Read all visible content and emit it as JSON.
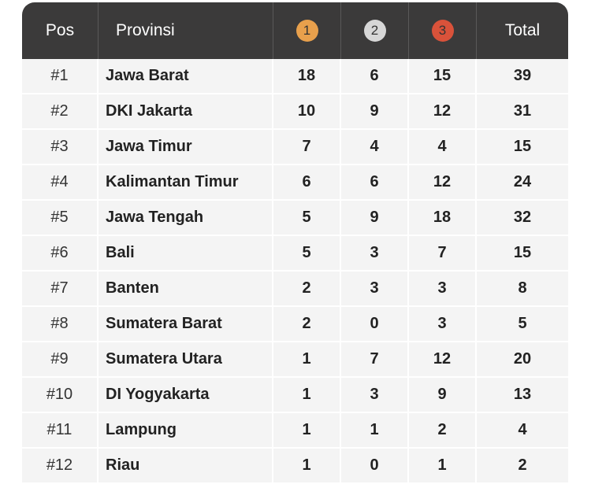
{
  "header": {
    "pos": "Pos",
    "province": "Provinsi",
    "gold": {
      "label": "1",
      "color": "#e8a04c"
    },
    "silver": {
      "label": "2",
      "color": "#d7d7d7"
    },
    "bronze": {
      "label": "3",
      "color": "#d9523a"
    },
    "total": "Total"
  },
  "rows": [
    {
      "pos": "#1",
      "province": "Jawa Barat",
      "gold": "18",
      "silver": "6",
      "bronze": "15",
      "total": "39"
    },
    {
      "pos": "#2",
      "province": "DKI Jakarta",
      "gold": "10",
      "silver": "9",
      "bronze": "12",
      "total": "31"
    },
    {
      "pos": "#3",
      "province": "Jawa Timur",
      "gold": "7",
      "silver": "4",
      "bronze": "4",
      "total": "15"
    },
    {
      "pos": "#4",
      "province": "Kalimantan Timur",
      "gold": "6",
      "silver": "6",
      "bronze": "12",
      "total": "24"
    },
    {
      "pos": "#5",
      "province": "Jawa Tengah",
      "gold": "5",
      "silver": "9",
      "bronze": "18",
      "total": "32"
    },
    {
      "pos": "#6",
      "province": "Bali",
      "gold": "5",
      "silver": "3",
      "bronze": "7",
      "total": "15"
    },
    {
      "pos": "#7",
      "province": "Banten",
      "gold": "2",
      "silver": "3",
      "bronze": "3",
      "total": "8"
    },
    {
      "pos": "#8",
      "province": "Sumatera Barat",
      "gold": "2",
      "silver": "0",
      "bronze": "3",
      "total": "5"
    },
    {
      "pos": "#9",
      "province": "Sumatera Utara",
      "gold": "1",
      "silver": "7",
      "bronze": "12",
      "total": "20"
    },
    {
      "pos": "#10",
      "province": "DI Yogyakarta",
      "gold": "1",
      "silver": "3",
      "bronze": "9",
      "total": "13"
    },
    {
      "pos": "#11",
      "province": "Lampung",
      "gold": "1",
      "silver": "1",
      "bronze": "2",
      "total": "4"
    },
    {
      "pos": "#12",
      "province": "Riau",
      "gold": "1",
      "silver": "0",
      "bronze": "1",
      "total": "2"
    }
  ]
}
